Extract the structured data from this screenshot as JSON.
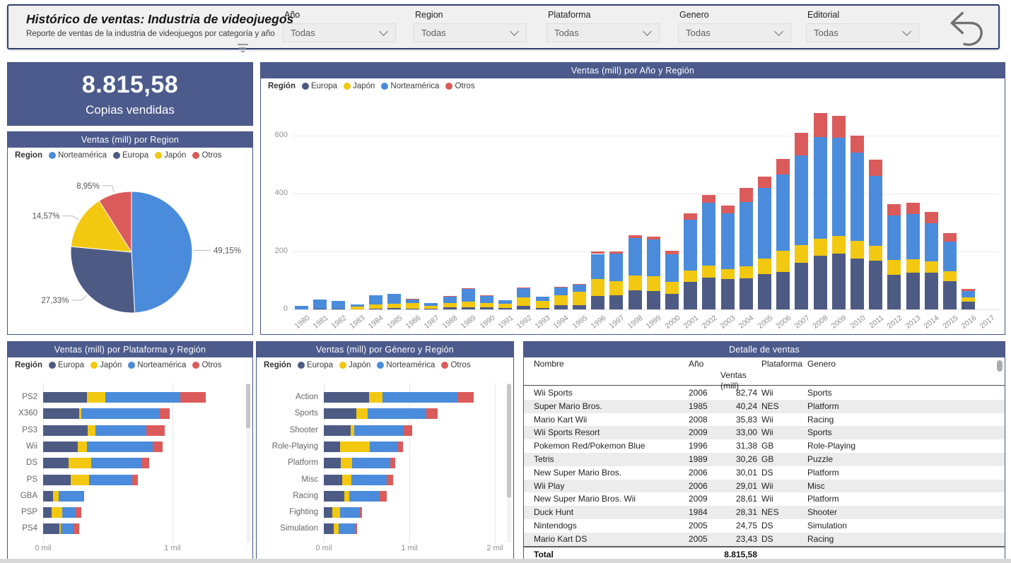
{
  "header": {
    "title": "Histórico de ventas: Industria de videojuegos",
    "subtitle": "Reporte de ventas de la industria de videojuegos por categoría y año",
    "filters": [
      {
        "label": "Año",
        "value": "Todas"
      },
      {
        "label": "Region",
        "value": "Todas"
      },
      {
        "label": "Plataforma",
        "value": "Todas"
      },
      {
        "label": "Genero",
        "value": "Todas"
      },
      {
        "label": "Editorial",
        "value": "Todas"
      }
    ]
  },
  "kpi": {
    "value": "8.815,58",
    "label": "Copias vendidas"
  },
  "colors": {
    "europa": "#4D5B84",
    "japon": "#F2C811",
    "norteamerica": "#4A8CDB",
    "otros": "#DB5B5B",
    "strip": "#4C5B8C"
  },
  "chart_data": [
    {
      "type": "pie",
      "title": "Ventas (mill) por Region",
      "legend_label": "Region",
      "legend_position": "top",
      "slices": [
        {
          "name": "Norteamérica",
          "color_key": "norteamerica",
          "pct": 49.15,
          "label": "49,15%"
        },
        {
          "name": "Europa",
          "color_key": "europa",
          "pct": 27.33,
          "label": "27,33%"
        },
        {
          "name": "Japón",
          "color_key": "japon",
          "pct": 14.57,
          "label": "14,57%"
        },
        {
          "name": "Otros",
          "color_key": "otros",
          "pct": 8.95,
          "label": "8,95%"
        }
      ]
    },
    {
      "type": "bar",
      "subtype": "stacked-column",
      "title": "Ventas (mill) por Año y Región",
      "legend_label": "Región",
      "legend_position": "top",
      "grid": true,
      "categories": [
        "1980",
        "1981",
        "1982",
        "1983",
        "1984",
        "1985",
        "1986",
        "1987",
        "1988",
        "1989",
        "1990",
        "1991",
        "1992",
        "1993",
        "1994",
        "1995",
        "1996",
        "1997",
        "1998",
        "1999",
        "2000",
        "2001",
        "2002",
        "2003",
        "2004",
        "2005",
        "2006",
        "2007",
        "2008",
        "2009",
        "2010",
        "2011",
        "2012",
        "2013",
        "2014",
        "2015",
        "2016",
        "2017"
      ],
      "ylim": [
        0,
        700
      ],
      "yticks": [
        0,
        200,
        400,
        600
      ],
      "series": [
        {
          "name": "Europa",
          "color_key": "europa",
          "values": [
            0.67,
            1.96,
            1.65,
            0.8,
            2.1,
            4.74,
            2.84,
            1.41,
            6.59,
            8.44,
            7.63,
            3.95,
            11.71,
            4.65,
            14.88,
            14.9,
            47.26,
            48.32,
            66.9,
            62.67,
            52.75,
            94.89,
            109.74,
            103.81,
            107.32,
            121.94,
            129.24,
            160.5,
            184.4,
            191.59,
            176.73,
            167.44,
            118.78,
            125.8,
            125.65,
            97.71,
            26.76,
            0
          ]
        },
        {
          "name": "Japón",
          "color_key": "japon",
          "values": [
            0,
            0,
            0,
            8.1,
            14.27,
            14.56,
            19.81,
            11.63,
            15.76,
            18.36,
            14.88,
            14.78,
            28.91,
            25.33,
            33.99,
            45.75,
            57.44,
            48.87,
            50.04,
            52.34,
            42.77,
            39.86,
            41.76,
            34.2,
            41.65,
            54.28,
            73.73,
            60.29,
            60.26,
            61.89,
            59.49,
            53.04,
            51.74,
            47.59,
            39.46,
            33.72,
            13.7,
            0.05
          ]
        },
        {
          "name": "Norteamérica",
          "color_key": "norteamerica",
          "values": [
            10.59,
            33.4,
            26.92,
            7.76,
            33.28,
            33.73,
            12.5,
            8.46,
            23.87,
            45.15,
            25.46,
            12.76,
            33.87,
            15.12,
            28.15,
            24.82,
            86.76,
            94.75,
            128.36,
            126.06,
            94.49,
            173.98,
            216.19,
            193.59,
            222.59,
            242.61,
            263.12,
            312.05,
            351.44,
            338.85,
            304.24,
            241.06,
            154.96,
            154.77,
            131.97,
            102.82,
            22.66,
            0
          ]
        },
        {
          "name": "Otros",
          "color_key": "otros",
          "values": [
            0.12,
            0.32,
            0.31,
            0.14,
            0.7,
            0.92,
            1.93,
            0.2,
            0.99,
            1.5,
            1.4,
            0.74,
            1.65,
            0.89,
            2.2,
            2.64,
            7.69,
            9.13,
            11.03,
            9.2,
            11.62,
            22.76,
            27.28,
            26.01,
            47.29,
            40.58,
            54.43,
            77.6,
            82.39,
            74.77,
            59.9,
            54.39,
            37.82,
            39.82,
            40.02,
            30.01,
            7.75,
            0
          ]
        }
      ]
    },
    {
      "type": "bar",
      "subtype": "stacked-bar-horizontal",
      "title": "Ventas (mill) por Plataforma y Región",
      "legend_label": "Región",
      "legend_position": "top",
      "categories": [
        "PS2",
        "X360",
        "PS3",
        "Wii",
        "DS",
        "PS",
        "GBA",
        "PSP",
        "PS4"
      ],
      "xticks": [
        "0 mil",
        "1 mil"
      ],
      "xlim_mil": [
        0,
        1.6
      ],
      "series": [
        {
          "name": "Europa",
          "color_key": "europa",
          "values": [
            339.29,
            280.58,
            343.71,
            268.38,
            194.65,
            213.6,
            75.25,
            68.25,
            123.7
          ]
        },
        {
          "name": "Japón",
          "color_key": "japon",
          "values": [
            139.2,
            12.43,
            59.87,
            69.35,
            175.57,
            139.82,
            47.33,
            76.79,
            14.3
          ]
        },
        {
          "name": "Norteamérica",
          "color_key": "norteamerica",
          "values": [
            583.84,
            601.05,
            392.26,
            507.71,
            390.71,
            336.51,
            187.54,
            108.99,
            96.8
          ]
        },
        {
          "name": "Otros",
          "color_key": "otros",
          "values": [
            193.44,
            85.54,
            141.93,
            80.61,
            60.53,
            40.91,
            7.73,
            42.19,
            43.36
          ]
        }
      ]
    },
    {
      "type": "bar",
      "subtype": "stacked-bar-horizontal",
      "title": "Ventas (mill) por Género y Región",
      "legend_label": "Región",
      "legend_position": "top",
      "categories": [
        "Action",
        "Sports",
        "Shooter",
        "Role-Playing",
        "Platform",
        "Misc",
        "Racing",
        "Fighting",
        "Simulation"
      ],
      "xticks": [
        "0 mil",
        "1 mil",
        "2 mil"
      ],
      "xlim_mil": [
        0,
        2
      ],
      "series": [
        {
          "name": "Europa",
          "color_key": "europa",
          "values": [
            525,
            376.85,
            313.27,
            188.06,
            201.63,
            215.98,
            238.39,
            101.32,
            113.38
          ]
        },
        {
          "name": "Japón",
          "color_key": "japon",
          "values": [
            159.95,
            135.37,
            38.28,
            352.31,
            130.77,
            107.76,
            56.69,
            87.35,
            63.7
          ]
        },
        {
          "name": "Norteamérica",
          "color_key": "norteamerica",
          "values": [
            877.83,
            683.35,
            582.6,
            327.28,
            447.05,
            410.24,
            359.42,
            223.59,
            183.31
          ]
        },
        {
          "name": "Otros",
          "color_key": "otros",
          "values": [
            187.38,
            134.97,
            102.69,
            59.61,
            51.59,
            75.32,
            77.27,
            36.68,
            31.52
          ]
        }
      ]
    }
  ],
  "table": {
    "title": "Detalle de ventas",
    "columns": [
      "Nombre",
      "Año",
      "Ventas\n(mill)",
      "Plataforma",
      "Genero"
    ],
    "sort_column": "Ventas (mill)",
    "sort_direction": "desc",
    "rows": [
      [
        "Wii Sports",
        "2006",
        "82,74",
        "Wii",
        "Sports"
      ],
      [
        "Super Mario Bros.",
        "1985",
        "40,24",
        "NES",
        "Platform"
      ],
      [
        "Mario Kart Wii",
        "2008",
        "35,83",
        "Wii",
        "Racing"
      ],
      [
        "Wii Sports Resort",
        "2009",
        "33,00",
        "Wii",
        "Sports"
      ],
      [
        "Pokemon Red/Pokemon Blue",
        "1996",
        "31,38",
        "GB",
        "Role-Playing"
      ],
      [
        "Tetris",
        "1989",
        "30,26",
        "GB",
        "Puzzle"
      ],
      [
        "New Super Mario Bros.",
        "2006",
        "30,01",
        "DS",
        "Platform"
      ],
      [
        "Wii Play",
        "2006",
        "29,01",
        "Wii",
        "Misc"
      ],
      [
        "New Super Mario Bros. Wii",
        "2009",
        "28,61",
        "Wii",
        "Platform"
      ],
      [
        "Duck Hunt",
        "1984",
        "28,31",
        "NES",
        "Shooter"
      ],
      [
        "Nintendogs",
        "2005",
        "24,75",
        "DS",
        "Simulation"
      ],
      [
        "Mario Kart DS",
        "2005",
        "23,43",
        "DS",
        "Racing"
      ]
    ],
    "total_label": "Total",
    "total_value": "8.815,58"
  }
}
